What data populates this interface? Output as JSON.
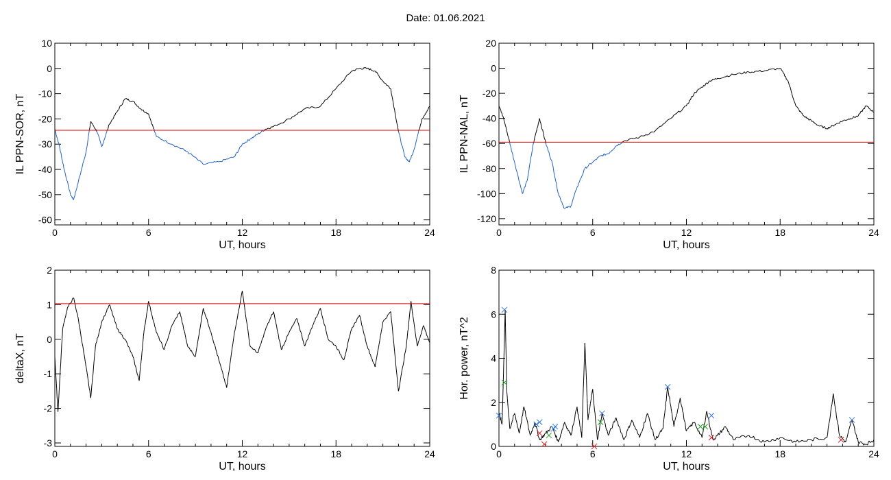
{
  "page": {
    "title": "Date:  01.06.2021"
  },
  "colors": {
    "background": "#ffffff",
    "axis": "#000000",
    "data_line": "#000000",
    "below_threshold_line": "#1f5fbf",
    "threshold_line": "#e00000",
    "marker_blue": "#3a7ad5",
    "marker_green": "#2ca02c",
    "marker_red": "#d62728"
  },
  "chart_data": [
    {
      "type": "line",
      "panel": "top-left",
      "xlabel": "UT, hours",
      "ylabel": "IL PPN-SOR, nT",
      "xlim": [
        0,
        24
      ],
      "ylim": [
        -62,
        10
      ],
      "xticks": [
        0,
        6,
        12,
        18,
        24
      ],
      "yticks": [
        -60,
        -50,
        -40,
        -30,
        -20,
        -10,
        0,
        10
      ],
      "threshold": -24.5,
      "series": [
        {
          "x": [
            0,
            0.3,
            0.6,
            1.0,
            1.2,
            1.5,
            2.0,
            2.3,
            2.7,
            3.0,
            3.5,
            4.0,
            4.5,
            5.0,
            5.5,
            6.0,
            6.5,
            7.5,
            8.5,
            9.5,
            10.5,
            11.5,
            12.0,
            12.5,
            13.0,
            13.5,
            14.0,
            15.0,
            16.0,
            17.0,
            18.0,
            19.0,
            19.5,
            20.0,
            20.5,
            21.0,
            21.5,
            22.0,
            22.4,
            22.7,
            23.0,
            23.5,
            24.0
          ],
          "y": [
            -24,
            -31,
            -40,
            -50,
            -52,
            -45,
            -33,
            -21,
            -25,
            -31,
            -22,
            -17,
            -12,
            -13,
            -16,
            -18,
            -27,
            -30,
            -33,
            -38,
            -37,
            -35,
            -30,
            -28,
            -26,
            -24,
            -23,
            -20,
            -16,
            -15,
            -8,
            -1,
            0,
            0,
            -1,
            -5,
            -8,
            -25,
            -35,
            -37,
            -32,
            -20,
            -15
          ]
        }
      ]
    },
    {
      "type": "line",
      "panel": "top-right",
      "xlabel": "UT, hours",
      "ylabel": "IL PPN-NAL, nT",
      "xlim": [
        0,
        24
      ],
      "ylim": [
        -125,
        20
      ],
      "xticks": [
        0,
        6,
        12,
        18,
        24
      ],
      "yticks": [
        -120,
        -100,
        -80,
        -60,
        -40,
        -20,
        0,
        20
      ],
      "threshold": -59,
      "series": [
        {
          "x": [
            0,
            0.3,
            0.6,
            1.0,
            1.5,
            1.8,
            2.2,
            2.6,
            3.0,
            3.4,
            3.8,
            4.2,
            4.6,
            5.0,
            5.5,
            6.0,
            6.5,
            7.0,
            7.5,
            8.0,
            9.0,
            10.0,
            11.0,
            12.0,
            12.5,
            13.0,
            13.5,
            14.0,
            15.0,
            16.0,
            17.0,
            18.0,
            18.5,
            19.0,
            19.5,
            20.0,
            20.5,
            21.0,
            21.5,
            22.0,
            22.5,
            23.0,
            23.5,
            24.0
          ],
          "y": [
            -30,
            -40,
            -55,
            -75,
            -100,
            -90,
            -60,
            -40,
            -60,
            -75,
            -100,
            -112,
            -110,
            -95,
            -80,
            -75,
            -70,
            -68,
            -62,
            -58,
            -55,
            -50,
            -40,
            -30,
            -20,
            -15,
            -10,
            -8,
            -5,
            -3,
            -2,
            0,
            -10,
            -30,
            -38,
            -42,
            -46,
            -48,
            -45,
            -42,
            -40,
            -38,
            -30,
            -35
          ]
        }
      ]
    },
    {
      "type": "line",
      "panel": "bottom-left",
      "xlabel": "UT, hours",
      "ylabel": "deltaX, nT",
      "xlim": [
        0,
        24
      ],
      "ylim": [
        -3.1,
        2
      ],
      "xticks": [
        0,
        6,
        12,
        18,
        24
      ],
      "yticks": [
        -3,
        -2,
        -1,
        0,
        1,
        2
      ],
      "threshold": 1.03,
      "series": [
        {
          "x": [
            0,
            0.2,
            0.5,
            0.8,
            1.2,
            1.5,
            2.0,
            2.3,
            2.6,
            3.0,
            3.5,
            4.0,
            4.5,
            5.0,
            5.4,
            5.7,
            6.0,
            6.5,
            7.0,
            7.5,
            8.0,
            8.5,
            9.0,
            9.5,
            10.0,
            10.5,
            11.0,
            11.5,
            12.0,
            12.5,
            13.0,
            13.5,
            14.0,
            14.5,
            15.0,
            15.5,
            16.0,
            16.5,
            17.0,
            17.5,
            18.0,
            18.5,
            19.0,
            19.5,
            20.0,
            20.5,
            21.0,
            21.5,
            22.0,
            22.5,
            22.8,
            23.2,
            23.6,
            24.0
          ],
          "y": [
            -0.5,
            -2.1,
            0.3,
            0.9,
            1.2,
            0.6,
            -0.8,
            -1.7,
            -0.2,
            0.5,
            1.0,
            0.3,
            0.0,
            -0.5,
            -1.2,
            0.2,
            1.1,
            0.2,
            -0.3,
            0.4,
            0.8,
            -0.2,
            -0.5,
            0.9,
            0.2,
            -0.6,
            -1.4,
            0.2,
            1.4,
            -0.2,
            -0.4,
            0.3,
            0.8,
            -0.3,
            0.2,
            0.6,
            -0.2,
            0.4,
            0.9,
            0.0,
            -0.2,
            -0.6,
            0.3,
            0.7,
            -0.2,
            -0.8,
            0.5,
            0.8,
            -1.5,
            -0.2,
            1.1,
            -0.2,
            0.4,
            -0.1
          ]
        }
      ]
    },
    {
      "type": "line",
      "panel": "bottom-right",
      "xlabel": "UT, hours",
      "ylabel": "Hor. power, nT^2",
      "xlim": [
        0,
        24
      ],
      "ylim": [
        0,
        8
      ],
      "xticks": [
        0,
        6,
        12,
        18,
        24
      ],
      "yticks": [
        0,
        2,
        4,
        6,
        8
      ],
      "series": [
        {
          "x": [
            0,
            0.2,
            0.4,
            0.5,
            0.7,
            1.0,
            1.3,
            1.6,
            2.0,
            2.3,
            2.6,
            3.0,
            3.4,
            3.8,
            4.2,
            4.6,
            5.0,
            5.3,
            5.5,
            5.7,
            6.0,
            6.3,
            6.6,
            7.0,
            7.5,
            8.0,
            8.5,
            9.0,
            9.5,
            10.0,
            10.5,
            10.8,
            11.2,
            11.6,
            12.0,
            12.5,
            13.0,
            13.3,
            13.7,
            14.0,
            14.5,
            15.0,
            16.0,
            17.0,
            18.0,
            19.0,
            20.0,
            21.0,
            21.4,
            21.8,
            22.2,
            22.6,
            23.0,
            23.5,
            24.0
          ],
          "y": [
            1.5,
            1.0,
            6.2,
            2.5,
            0.8,
            1.5,
            0.6,
            1.8,
            0.5,
            1.1,
            0.3,
            0.6,
            0.9,
            0.2,
            1.1,
            0.5,
            1.8,
            0.4,
            4.7,
            1.2,
            2.6,
            0.3,
            1.5,
            0.5,
            1.3,
            0.3,
            1.2,
            0.4,
            1.5,
            0.3,
            0.8,
            2.7,
            0.9,
            2.2,
            0.7,
            1.1,
            0.4,
            1.6,
            0.3,
            0.5,
            0.9,
            0.3,
            0.5,
            0.2,
            0.4,
            0.2,
            0.3,
            0.4,
            2.4,
            0.5,
            0.2,
            1.2,
            0.2,
            0.1,
            0.3
          ]
        }
      ],
      "markers": [
        {
          "symbol": "x",
          "color": "blue",
          "points": [
            [
              0.35,
              6.2
            ],
            [
              2.4,
              1.0
            ],
            [
              3.5,
              0.8
            ],
            [
              6.6,
              1.5
            ],
            [
              10.8,
              2.7
            ],
            [
              13.6,
              1.4
            ],
            [
              22.6,
              1.2
            ],
            [
              0.0,
              1.4
            ],
            [
              2.6,
              1.1
            ],
            [
              3.6,
              0.9
            ]
          ]
        },
        {
          "symbol": "x",
          "color": "green",
          "points": [
            [
              0.35,
              2.9
            ],
            [
              3.2,
              0.5
            ],
            [
              6.5,
              1.1
            ],
            [
              12.9,
              0.9
            ],
            [
              13.2,
              0.9
            ]
          ]
        },
        {
          "symbol": "x",
          "color": "red",
          "points": [
            [
              2.6,
              0.6
            ],
            [
              2.9,
              0.1
            ],
            [
              6.1,
              0.0
            ],
            [
              21.9,
              0.3
            ],
            [
              13.6,
              0.4
            ]
          ]
        }
      ]
    }
  ]
}
